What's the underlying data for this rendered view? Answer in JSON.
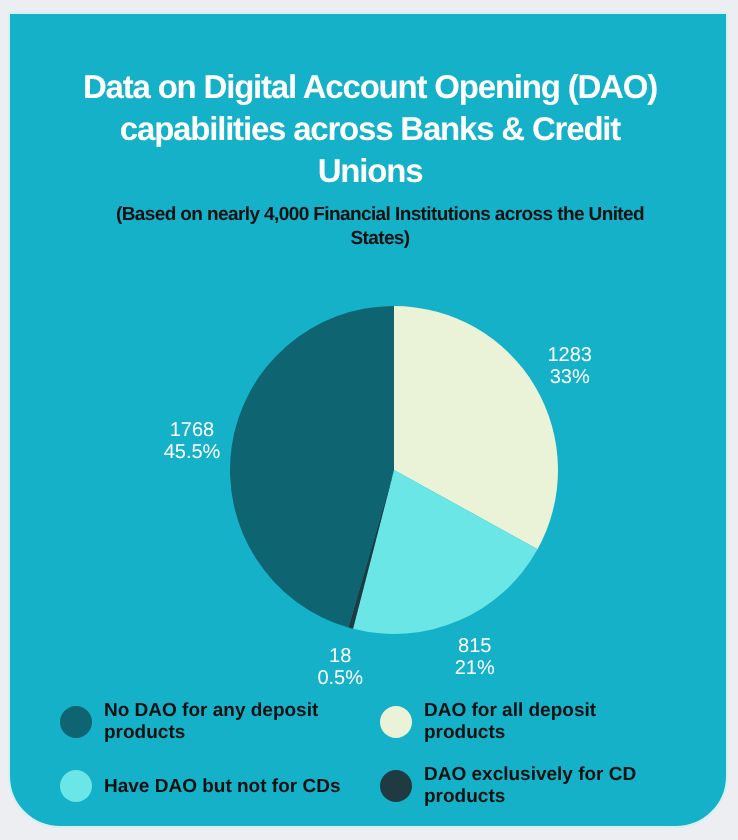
{
  "chart_data": {
    "type": "pie",
    "title": "Data on Digital Account Opening (DAO) capabilities across Banks & Credit Unions",
    "subtitle": "(Based on nearly 4,000 Financial Institutions across the United States)",
    "categories": [
      "No DAO for any deposit products",
      "DAO for all deposit products",
      "Have DAO but not for CDs",
      "DAO exclusively for CD products"
    ],
    "values": [
      1768,
      1283,
      815,
      18
    ],
    "colors": [
      "#0e6470",
      "#eaf2d8",
      "#6ae6e6",
      "#1f3a40"
    ],
    "value_labels": [
      "1768\n45.5%",
      "1283\n33%",
      "815\n21%",
      "18\n0.5%"
    ],
    "legend": "bottom"
  }
}
